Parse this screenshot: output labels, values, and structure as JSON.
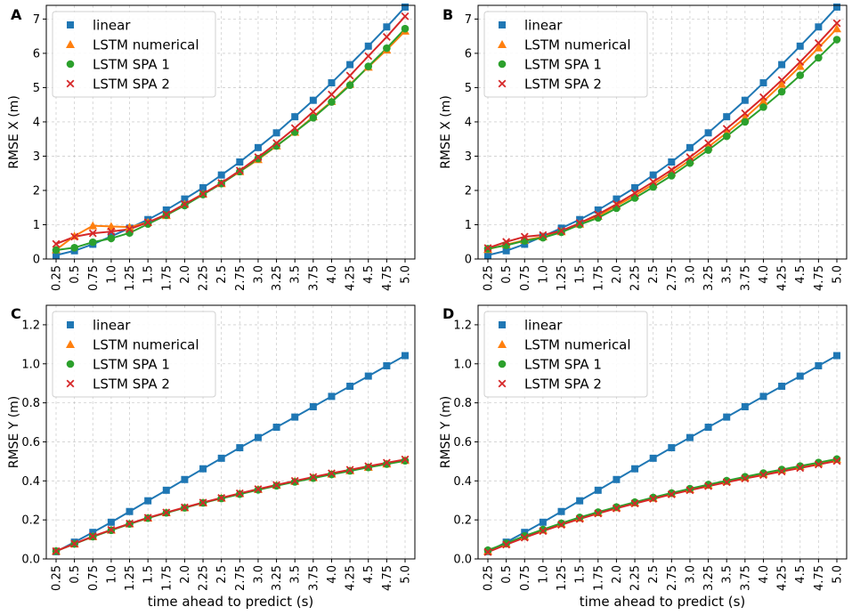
{
  "figure": {
    "xlabel": "time ahead to predict (s)",
    "colors": {
      "linear": "#1f77b4",
      "LSTM numerical": "#ff7f0e",
      "LSTM SPA 1": "#2ca02c",
      "LSTM SPA 2": "#d62728"
    },
    "markers": {
      "linear": "square",
      "LSTM numerical": "triangle",
      "LSTM SPA 1": "circle",
      "LSTM SPA 2": "cross"
    }
  },
  "chart_data": [
    {
      "panel": "A",
      "type": "line",
      "title": "",
      "xlabel": "",
      "ylabel": "RMSE X (m)",
      "x": [
        "0.25",
        "0.5",
        "0.75",
        "1.0",
        "1.25",
        "1.5",
        "1.75",
        "2.0",
        "2.25",
        "2.5",
        "2.75",
        "3.0",
        "3.25",
        "3.5",
        "3.75",
        "4.0",
        "4.25",
        "4.5",
        "4.75",
        "5.0"
      ],
      "ylim": [
        0,
        7.4
      ],
      "yticks": [
        "0",
        "1",
        "2",
        "3",
        "4",
        "5",
        "6",
        "7"
      ],
      "legend": "top-left",
      "series": [
        {
          "name": "linear",
          "values": [
            0.11,
            0.24,
            0.43,
            0.66,
            0.9,
            1.15,
            1.43,
            1.75,
            2.08,
            2.45,
            2.83,
            3.25,
            3.68,
            4.15,
            4.63,
            5.14,
            5.67,
            6.21,
            6.77,
            7.35
          ]
        },
        {
          "name": "LSTM numerical",
          "values": [
            0.27,
            0.67,
            0.97,
            0.95,
            0.93,
            1.07,
            1.27,
            1.6,
            1.9,
            2.2,
            2.55,
            2.9,
            3.3,
            3.7,
            4.15,
            4.6,
            5.1,
            5.6,
            6.1,
            6.65
          ]
        },
        {
          "name": "LSTM SPA 1",
          "values": [
            0.26,
            0.33,
            0.49,
            0.6,
            0.76,
            1.02,
            1.28,
            1.56,
            1.88,
            2.2,
            2.55,
            2.93,
            3.3,
            3.7,
            4.12,
            4.58,
            5.07,
            5.62,
            6.15,
            6.72
          ]
        },
        {
          "name": "LSTM SPA 2",
          "values": [
            0.44,
            0.65,
            0.75,
            0.8,
            0.87,
            1.07,
            1.3,
            1.6,
            1.9,
            2.22,
            2.58,
            2.97,
            3.38,
            3.82,
            4.3,
            4.8,
            5.35,
            5.92,
            6.48,
            7.08
          ]
        }
      ]
    },
    {
      "panel": "B",
      "type": "line",
      "title": "",
      "xlabel": "",
      "ylabel": "RMSE X (m)",
      "x": [
        "0.25",
        "0.5",
        "0.75",
        "1.0",
        "1.25",
        "1.5",
        "1.75",
        "2.0",
        "2.25",
        "2.5",
        "2.75",
        "3.0",
        "3.25",
        "3.5",
        "3.75",
        "4.0",
        "4.25",
        "4.5",
        "4.75",
        "5.0"
      ],
      "ylim": [
        0,
        7.4
      ],
      "yticks": [
        "0",
        "1",
        "2",
        "3",
        "4",
        "5",
        "6",
        "7"
      ],
      "legend": "top-left",
      "series": [
        {
          "name": "linear",
          "values": [
            0.11,
            0.24,
            0.43,
            0.66,
            0.9,
            1.15,
            1.43,
            1.75,
            2.08,
            2.45,
            2.83,
            3.25,
            3.68,
            4.15,
            4.63,
            5.14,
            5.67,
            6.21,
            6.77,
            7.35
          ]
        },
        {
          "name": "LSTM numerical",
          "values": [
            0.28,
            0.42,
            0.55,
            0.65,
            0.8,
            1.02,
            1.25,
            1.55,
            1.85,
            2.18,
            2.52,
            2.88,
            3.27,
            3.68,
            4.12,
            4.6,
            5.1,
            5.62,
            6.16,
            6.72
          ]
        },
        {
          "name": "LSTM SPA 1",
          "values": [
            0.3,
            0.4,
            0.53,
            0.62,
            0.78,
            1.0,
            1.2,
            1.48,
            1.78,
            2.1,
            2.43,
            2.8,
            3.18,
            3.58,
            4.0,
            4.43,
            4.88,
            5.36,
            5.87,
            6.4
          ]
        },
        {
          "name": "LSTM SPA 2",
          "values": [
            0.32,
            0.5,
            0.65,
            0.7,
            0.82,
            1.05,
            1.3,
            1.6,
            1.92,
            2.25,
            2.6,
            2.97,
            3.38,
            3.8,
            4.25,
            4.72,
            5.22,
            5.75,
            6.3,
            6.88
          ]
        }
      ]
    },
    {
      "panel": "C",
      "type": "line",
      "title": "",
      "xlabel": "time ahead to predict (s)",
      "ylabel": "RMSE Y (m)",
      "x": [
        "0.25",
        "0.5",
        "0.75",
        "1.0",
        "1.25",
        "1.5",
        "1.75",
        "2.0",
        "2.25",
        "2.5",
        "2.75",
        "3.0",
        "3.25",
        "3.5",
        "3.75",
        "4.0",
        "4.25",
        "4.5",
        "4.75",
        "5.0"
      ],
      "ylim": [
        0,
        1.3
      ],
      "yticks": [
        "0.0",
        "0.2",
        "0.4",
        "0.6",
        "0.8",
        "1.0",
        "1.2"
      ],
      "legend": "top-left",
      "series": [
        {
          "name": "linear",
          "values": [
            0.037,
            0.086,
            0.136,
            0.188,
            0.243,
            0.298,
            0.352,
            0.407,
            0.462,
            0.516,
            0.57,
            0.622,
            0.675,
            0.727,
            0.78,
            0.833,
            0.885,
            0.937,
            0.99,
            1.042
          ]
        },
        {
          "name": "LSTM numerical",
          "values": [
            0.04,
            0.077,
            0.115,
            0.148,
            0.18,
            0.21,
            0.237,
            0.263,
            0.288,
            0.312,
            0.335,
            0.357,
            0.378,
            0.398,
            0.417,
            0.435,
            0.453,
            0.47,
            0.487,
            0.505
          ]
        },
        {
          "name": "LSTM SPA 1",
          "values": [
            0.04,
            0.077,
            0.114,
            0.147,
            0.179,
            0.209,
            0.236,
            0.262,
            0.287,
            0.31,
            0.332,
            0.354,
            0.375,
            0.395,
            0.414,
            0.433,
            0.451,
            0.469,
            0.486,
            0.503
          ]
        },
        {
          "name": "LSTM SPA 2",
          "values": [
            0.04,
            0.078,
            0.116,
            0.149,
            0.181,
            0.211,
            0.238,
            0.264,
            0.289,
            0.313,
            0.336,
            0.358,
            0.379,
            0.4,
            0.42,
            0.439,
            0.457,
            0.475,
            0.493,
            0.51
          ]
        }
      ]
    },
    {
      "panel": "D",
      "type": "line",
      "title": "",
      "xlabel": "time ahead to predict (s)",
      "ylabel": "RMSE Y (m)",
      "x": [
        "0.25",
        "0.5",
        "0.75",
        "1.0",
        "1.25",
        "1.5",
        "1.75",
        "2.0",
        "2.25",
        "2.5",
        "2.75",
        "3.0",
        "3.25",
        "3.5",
        "3.75",
        "4.0",
        "4.25",
        "4.5",
        "4.75",
        "5.0"
      ],
      "ylim": [
        0,
        1.3
      ],
      "yticks": [
        "0.0",
        "0.2",
        "0.4",
        "0.6",
        "0.8",
        "1.0",
        "1.2"
      ],
      "legend": "top-left",
      "series": [
        {
          "name": "linear",
          "values": [
            0.037,
            0.086,
            0.136,
            0.188,
            0.243,
            0.298,
            0.352,
            0.407,
            0.462,
            0.516,
            0.57,
            0.622,
            0.675,
            0.727,
            0.78,
            0.833,
            0.885,
            0.937,
            0.99,
            1.042
          ]
        },
        {
          "name": "LSTM numerical",
          "values": [
            0.04,
            0.077,
            0.115,
            0.148,
            0.18,
            0.21,
            0.237,
            0.263,
            0.288,
            0.312,
            0.335,
            0.357,
            0.378,
            0.398,
            0.418,
            0.437,
            0.456,
            0.474,
            0.492,
            0.51
          ]
        },
        {
          "name": "LSTM SPA 1",
          "values": [
            0.045,
            0.08,
            0.118,
            0.151,
            0.183,
            0.213,
            0.24,
            0.266,
            0.291,
            0.315,
            0.338,
            0.36,
            0.381,
            0.401,
            0.421,
            0.44,
            0.458,
            0.476,
            0.494,
            0.512
          ]
        },
        {
          "name": "LSTM SPA 2",
          "values": [
            0.035,
            0.073,
            0.109,
            0.143,
            0.175,
            0.205,
            0.233,
            0.259,
            0.284,
            0.308,
            0.331,
            0.352,
            0.373,
            0.393,
            0.412,
            0.43,
            0.448,
            0.466,
            0.484,
            0.502
          ]
        }
      ]
    }
  ]
}
